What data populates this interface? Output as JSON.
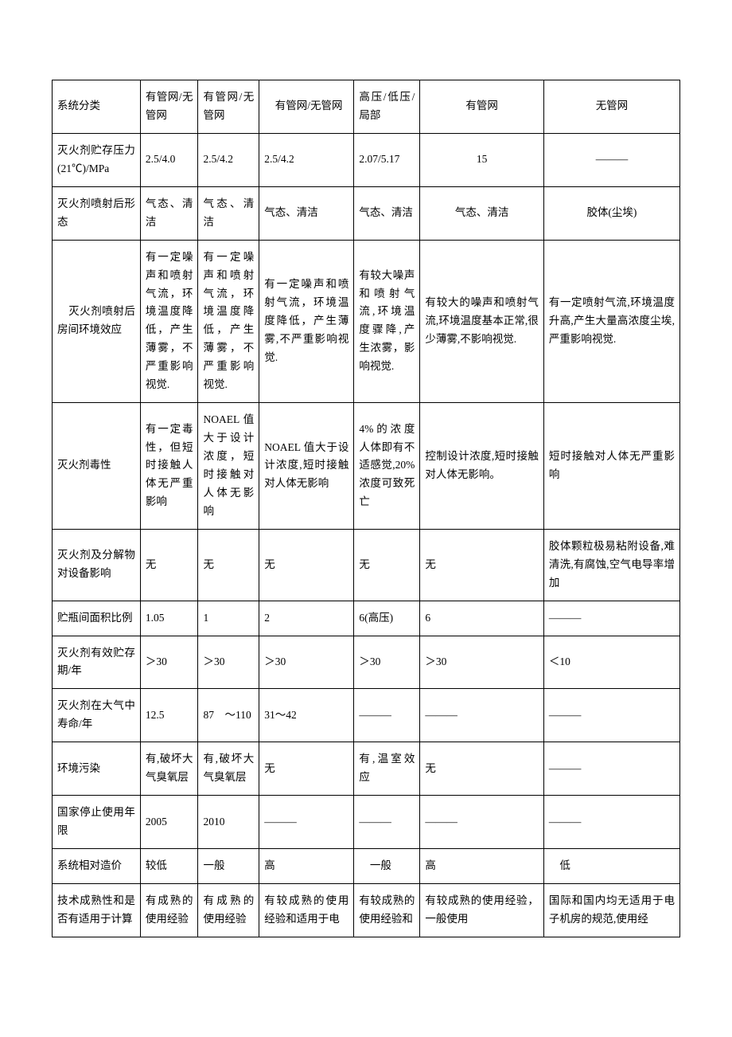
{
  "table": {
    "rows": [
      {
        "label": "系统分类",
        "c1": "有管网/无管网",
        "c2": "有管网/无管网",
        "c3": "　有管网/无管网",
        "c4": "高压/低压/局部",
        "c5": "有管网",
        "c6": "无管网"
      },
      {
        "label": "灭火剂贮存压力(21℃)/MPa",
        "c1": "2.5/4.0",
        "c2": "2.5/4.2",
        "c3": "2.5/4.2",
        "c4": "2.07/5.17",
        "c5": "15",
        "c6": "———"
      },
      {
        "label": "灭火剂喷射后形态",
        "c1": "气态、清洁",
        "c2": "气态、清洁",
        "c3": "气态、清洁",
        "c4": "气态、清洁",
        "c5": "气态、清洁",
        "c6": "胶体(尘埃)"
      },
      {
        "label": "　灭火剂喷射后房间环境效应",
        "c1": "有一定噪声和喷射气流，环境温度降低，产生薄雾，不严重影响视觉.",
        "c2": "有一定噪声和喷射气流，环境温度降低，产生薄雾，不严重影响视觉.",
        "c3": "有一定噪声和喷射气流，环境温度降低，产生薄雾,不严重影响视觉.",
        "c4": "有较大噪声和喷射气流,环境温度骤降,产生浓雾，影响视觉.",
        "c5": "有较大的噪声和喷射气流,环境温度基本正常,很少薄雾,不影响视觉.",
        "c6": "有一定喷射气流,环境温度升高,产生大量高浓度尘埃,严重影响视觉."
      },
      {
        "label": "灭火剂毒性",
        "c1": "有一定毒性，但短时接触人体无严重影响",
        "c2": "NOAEL 值大于设计浓度，短时接触对人体无影响",
        "c3": "NOAEL 值大于设计浓度,短时接触对人体无影响",
        "c4": "4%的浓度人体即有不适感觉,20%浓度可致死亡",
        "c5": "控制设计浓度,短时接触对人体无影响。",
        "c6": "短时接触对人体无严重影响"
      },
      {
        "label": "灭火剂及分解物对设备影响",
        "c1": "无",
        "c2": "无",
        "c3": "无",
        "c4": "无",
        "c5": "无",
        "c6": "胶体颗粒极易粘附设备,难清洗,有腐蚀,空气电导率增加"
      },
      {
        "label": "贮瓶间面积比例",
        "c1": "1.05",
        "c2": "1",
        "c3": "2",
        "c4": "6(高压)",
        "c5": "6",
        "c6": "———"
      },
      {
        "label": "灭火剂有效贮存期/年",
        "c1": "＞30",
        "c2": "＞30",
        "c3": "＞30",
        "c4": "＞30",
        "c5": "＞30",
        "c6": "＜10"
      },
      {
        "label": "灭火剂在大气中寿命/年",
        "c1": "12.5",
        "c2": "87　～110",
        "c3": "31～42",
        "c4": "———",
        "c5": "———",
        "c6": "———"
      },
      {
        "label": "环境污染",
        "c1": "有,破坏大气臭氧层",
        "c2": "有,破坏大气臭氧层",
        "c3": "无",
        "c4": "有,温室效应",
        "c5": "无",
        "c6": "———"
      },
      {
        "label": "国家停止使用年限",
        "c1": "2005",
        "c2": "2010",
        "c3": "———",
        "c4": "———",
        "c5": "———",
        "c6": "———"
      },
      {
        "label": "系统相对造价",
        "c1": "较低",
        "c2": "一般",
        "c3": "高",
        "c4": "　一般",
        "c5": "高",
        "c6": "　低"
      },
      {
        "label": "技术成熟性和是否有适用于计算",
        "c1": "有成熟的使用经验",
        "c2": "有成熟的使用经验",
        "c3": "有较成熟的使用经验和适用于电",
        "c4": "有较成熟的使用经验和",
        "c5": "有较成熟的使用经验，一般使用",
        "c6": "国际和国内均无适用于电子机房的规范,使用经"
      }
    ]
  }
}
